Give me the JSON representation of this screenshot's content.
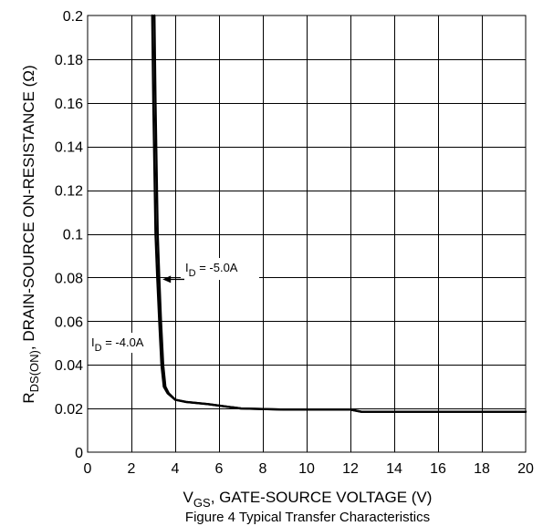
{
  "chart_data": {
    "type": "line",
    "title": "",
    "caption": "Figure 4 Typical Transfer Characteristics",
    "xlabel": {
      "main": "V",
      "sub": "GS",
      "rest": ", GATE-SOURCE VOLTAGE (V)"
    },
    "ylabel": {
      "main": "R",
      "sub": "DS(ON)",
      "rest": ", DRAIN-SOURCE ON-RESISTANCE (Ω)"
    },
    "xlim": [
      0,
      20
    ],
    "ylim": [
      0,
      0.2
    ],
    "xticks": [
      0,
      2,
      4,
      6,
      8,
      10,
      12,
      14,
      16,
      18,
      20
    ],
    "xtick_labels": [
      "0",
      "2",
      "4",
      "6",
      "8",
      "10",
      "12",
      "14",
      "16",
      "18",
      "20"
    ],
    "yticks": [
      0,
      0.02,
      0.04,
      0.06,
      0.08,
      0.1,
      0.12,
      0.14,
      0.16,
      0.18,
      0.2
    ],
    "ytick_labels": [
      "0",
      "0.02",
      "0.04",
      "0.06",
      "0.08",
      "0.1",
      "0.12",
      "0.14",
      "0.16",
      "0.18",
      "0.2"
    ],
    "grid": true,
    "series": [
      {
        "name": "I_D = -5.0A",
        "label": {
          "main": "I",
          "sub": "D",
          "rest": " = -5.0A"
        },
        "x": [
          3.05,
          3.1,
          3.15,
          3.2,
          3.27,
          3.35,
          3.45,
          3.55,
          3.7,
          4.0,
          4.5,
          5.5,
          7.0,
          9.0,
          12.0,
          12.5,
          16.0,
          20.0
        ],
        "y": [
          0.2,
          0.16,
          0.13,
          0.1,
          0.08,
          0.06,
          0.04,
          0.03,
          0.027,
          0.024,
          0.023,
          0.022,
          0.02,
          0.0195,
          0.0195,
          0.0185,
          0.0185,
          0.0185
        ]
      },
      {
        "name": "I_D = -4.0A",
        "label": {
          "main": "I",
          "sub": "D",
          "rest": " = -4.0A"
        },
        "x": [
          2.95,
          3.0,
          3.05,
          3.1,
          3.18,
          3.27,
          3.37,
          3.48,
          3.65,
          4.0,
          4.5,
          5.5,
          7.0,
          9.0,
          12.0,
          12.5,
          16.0,
          20.0
        ],
        "y": [
          0.2,
          0.16,
          0.13,
          0.1,
          0.08,
          0.06,
          0.04,
          0.03,
          0.027,
          0.024,
          0.023,
          0.022,
          0.02,
          0.0195,
          0.0195,
          0.0185,
          0.0185,
          0.0185
        ]
      }
    ],
    "annotations": [
      {
        "series": "I_D = -5.0A",
        "point": [
          3.3,
          0.08
        ]
      },
      {
        "series": "I_D = -4.0A",
        "point": [
          3.3,
          0.048
        ]
      }
    ]
  }
}
